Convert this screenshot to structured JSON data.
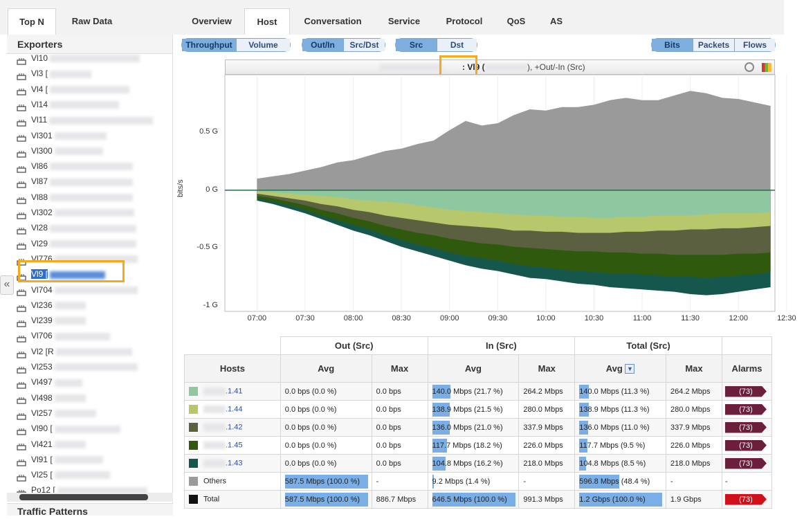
{
  "tabs_left": [
    {
      "label": "Top N",
      "active": true
    },
    {
      "label": "Raw Data",
      "active": false
    }
  ],
  "tabs_right": [
    {
      "label": "Overview"
    },
    {
      "label": "Host",
      "active": true
    },
    {
      "label": "Conversation"
    },
    {
      "label": "Service"
    },
    {
      "label": "Protocol"
    },
    {
      "label": "QoS"
    },
    {
      "label": "AS"
    }
  ],
  "exporters_title": "Exporters",
  "exporters": [
    "Vl10",
    "Vl3 [",
    "Vl4 [",
    "Vl14",
    "Vl11",
    "Vl301",
    "Vl300",
    "Vl86",
    "Vl87",
    "Vl88",
    "Vl302",
    "Vl28",
    "Vl29",
    "Vl776",
    "Vl9 [",
    "Vl704",
    "Vl236",
    "Vl239",
    "Vl706",
    "Vl2 [R",
    "Vl253",
    "Vl497",
    "Vl498",
    "Vl257",
    "Vl90 [",
    "Vl421",
    "Vl91 [",
    "Vl25 [",
    "Po12 ["
  ],
  "selected_exporter": "Vl9 [",
  "traffic_patterns": "Traffic Patterns",
  "collapse_glyph": "«",
  "toggles": {
    "metric": [
      "Throughput",
      "Volume"
    ],
    "direction": [
      "Out/In",
      "Src/Dst"
    ],
    "side": [
      "Src",
      "Dst"
    ],
    "unit": [
      "Bits",
      "Packets",
      "Flows"
    ]
  },
  "chart_title": {
    "highlight": ": Vl9 (",
    "suffix": "), +Out/-In (Src)"
  },
  "chart_data": {
    "type": "area",
    "ylabel": "bits/s",
    "yticks": [
      "0.5 G",
      "0 G",
      "-0.5 G",
      "-1 G"
    ],
    "xticks": [
      "07:00",
      "07:30",
      "08:00",
      "08:30",
      "09:00",
      "09:30",
      "10:00",
      "10:30",
      "11:00",
      "11:30",
      "12:00",
      "12:30"
    ],
    "ylim": [
      -1.05,
      1.0
    ],
    "x_minutes": [
      0,
      10,
      20,
      30,
      40,
      50,
      60,
      70,
      80,
      90,
      100,
      110,
      120,
      130,
      140,
      150,
      160,
      170,
      180,
      190,
      200,
      210,
      220,
      230,
      240,
      250,
      260,
      270,
      280,
      290,
      300,
      310,
      320
    ],
    "series": [
      {
        "name": "Others",
        "color": "#9a9a9a",
        "values": [
          0.1,
          0.12,
          0.14,
          0.17,
          0.2,
          0.24,
          0.26,
          0.3,
          0.34,
          0.36,
          0.4,
          0.43,
          0.52,
          0.6,
          0.56,
          0.58,
          0.65,
          0.7,
          0.69,
          0.72,
          0.72,
          0.74,
          0.78,
          0.8,
          0.78,
          0.78,
          0.82,
          0.86,
          0.84,
          0.8,
          0.79,
          0.76,
          0.73
        ]
      },
      {
        "name": ".1.41",
        "color": "#8fc8a0",
        "values": [
          -0.01,
          -0.02,
          -0.03,
          -0.04,
          -0.05,
          -0.06,
          -0.08,
          -0.09,
          -0.1,
          -0.11,
          -0.13,
          -0.15,
          -0.17,
          -0.18,
          -0.19,
          -0.2,
          -0.21,
          -0.22,
          -0.22,
          -0.23,
          -0.23,
          -0.24,
          -0.24,
          -0.23,
          -0.23,
          -0.22,
          -0.22,
          -0.22,
          -0.21,
          -0.2,
          -0.2,
          -0.2,
          -0.19
        ]
      },
      {
        "name": ".1.44",
        "color": "#b6c86b",
        "values": [
          -0.03,
          -0.05,
          -0.07,
          -0.09,
          -0.12,
          -0.14,
          -0.17,
          -0.19,
          -0.22,
          -0.24,
          -0.26,
          -0.28,
          -0.3,
          -0.31,
          -0.32,
          -0.33,
          -0.35,
          -0.35,
          -0.36,
          -0.36,
          -0.37,
          -0.37,
          -0.37,
          -0.36,
          -0.36,
          -0.35,
          -0.35,
          -0.34,
          -0.34,
          -0.33,
          -0.33,
          -0.32,
          -0.31
        ]
      },
      {
        "name": ".1.42",
        "color": "#5b6140",
        "values": [
          -0.05,
          -0.07,
          -0.1,
          -0.13,
          -0.17,
          -0.2,
          -0.24,
          -0.27,
          -0.31,
          -0.34,
          -0.37,
          -0.39,
          -0.42,
          -0.44,
          -0.46,
          -0.47,
          -0.49,
          -0.5,
          -0.51,
          -0.52,
          -0.53,
          -0.53,
          -0.54,
          -0.54,
          -0.55,
          -0.55,
          -0.56,
          -0.56,
          -0.56,
          -0.56,
          -0.55,
          -0.55,
          -0.54
        ]
      },
      {
        "name": ".1.45",
        "color": "#2f5a0e",
        "values": [
          -0.07,
          -0.1,
          -0.13,
          -0.17,
          -0.22,
          -0.26,
          -0.3,
          -0.34,
          -0.39,
          -0.43,
          -0.47,
          -0.5,
          -0.54,
          -0.57,
          -0.59,
          -0.61,
          -0.64,
          -0.66,
          -0.67,
          -0.69,
          -0.7,
          -0.71,
          -0.72,
          -0.72,
          -0.73,
          -0.74,
          -0.75,
          -0.75,
          -0.76,
          -0.75,
          -0.74,
          -0.73,
          -0.71
        ]
      },
      {
        "name": ".1.43",
        "color": "#15574d",
        "values": [
          -0.09,
          -0.12,
          -0.16,
          -0.2,
          -0.25,
          -0.3,
          -0.35,
          -0.39,
          -0.44,
          -0.49,
          -0.53,
          -0.57,
          -0.61,
          -0.65,
          -0.68,
          -0.7,
          -0.73,
          -0.76,
          -0.77,
          -0.79,
          -0.81,
          -0.82,
          -0.84,
          -0.85,
          -0.86,
          -0.87,
          -0.88,
          -0.9,
          -0.91,
          -0.9,
          -0.88,
          -0.86,
          -0.84
        ]
      }
    ]
  },
  "table": {
    "groups": [
      "Out (Src)",
      "In (Src)",
      "Total (Src)"
    ],
    "cols": [
      "Hosts",
      "Avg",
      "Max",
      "Avg",
      "Max",
      "Avg",
      "Max",
      "Alarms"
    ],
    "rows": [
      {
        "host": ".1.41",
        "color": "#8fc8a0",
        "link": true,
        "out_avg": "0.0 bps (0.0 %)",
        "out_max": "0.0 bps",
        "in_avg": "140.0 Mbps (21.7 %)",
        "in_pct": 21.7,
        "in_max": "264.2 Mbps",
        "tot_avg": "140.0 Mbps (11.3 %)",
        "tot_pct": 11.3,
        "tot_max": "264.2 Mbps",
        "alarm": "(73)",
        "alarm_color": "#6b1f3c"
      },
      {
        "host": ".1.44",
        "color": "#b6c86b",
        "link": true,
        "out_avg": "0.0 bps (0.0 %)",
        "out_max": "0.0 bps",
        "in_avg": "138.9 Mbps (21.5 %)",
        "in_pct": 21.5,
        "in_max": "280.0 Mbps",
        "tot_avg": "138.9 Mbps (11.3 %)",
        "tot_pct": 11.3,
        "tot_max": "280.0 Mbps",
        "alarm": "(73)",
        "alarm_color": "#6b1f3c"
      },
      {
        "host": ".1.42",
        "color": "#5b6140",
        "link": true,
        "out_avg": "0.0 bps (0.0 %)",
        "out_max": "0.0 bps",
        "in_avg": "136.0 Mbps (21.0 %)",
        "in_pct": 21.0,
        "in_max": "337.9 Mbps",
        "tot_avg": "136.0 Mbps (11.0 %)",
        "tot_pct": 11.0,
        "tot_max": "337.9 Mbps",
        "alarm": "(73)",
        "alarm_color": "#6b1f3c"
      },
      {
        "host": ".1.45",
        "color": "#2f5a0e",
        "link": true,
        "out_avg": "0.0 bps (0.0 %)",
        "out_max": "0.0 bps",
        "in_avg": "117.7 Mbps (18.2 %)",
        "in_pct": 18.2,
        "in_max": "226.0 Mbps",
        "tot_avg": "117.7 Mbps (9.5 %)",
        "tot_pct": 9.5,
        "tot_max": "226.0 Mbps",
        "alarm": "(73)",
        "alarm_color": "#6b1f3c"
      },
      {
        "host": ".1.43",
        "color": "#15574d",
        "link": true,
        "out_avg": "0.0 bps (0.0 %)",
        "out_max": "0.0 bps",
        "in_avg": "104.8 Mbps (16.2 %)",
        "in_pct": 16.2,
        "in_max": "218.0 Mbps",
        "tot_avg": "104.8 Mbps (8.5 %)",
        "tot_pct": 8.5,
        "tot_max": "218.0 Mbps",
        "alarm": "(73)",
        "alarm_color": "#6b1f3c"
      },
      {
        "host": "Others",
        "color": "#9a9a9a",
        "link": false,
        "out_avg": "587.5 Mbps (100.0 %)",
        "out_pct": 100,
        "out_max": "-",
        "in_avg": "9.2 Mbps (1.4 %)",
        "in_pct": 1.4,
        "in_max": "-",
        "tot_avg": "596.8 Mbps (48.4 %)",
        "tot_pct": 48.4,
        "tot_max": "-",
        "alarm": "-",
        "alarm_color": ""
      },
      {
        "host": "Total",
        "color": "#111111",
        "link": false,
        "out_avg": "587.5 Mbps (100.0 %)",
        "out_pct": 100,
        "out_max": "886.7 Mbps",
        "in_avg": "646.5 Mbps (100.0 %)",
        "in_pct": 100,
        "in_max": "991.3 Mbps",
        "tot_avg": "1.2 Gbps (100.0 %)",
        "tot_pct": 100,
        "tot_max": "1.9 Gbps",
        "alarm": "(73)",
        "alarm_color": "#d0111c"
      }
    ]
  }
}
